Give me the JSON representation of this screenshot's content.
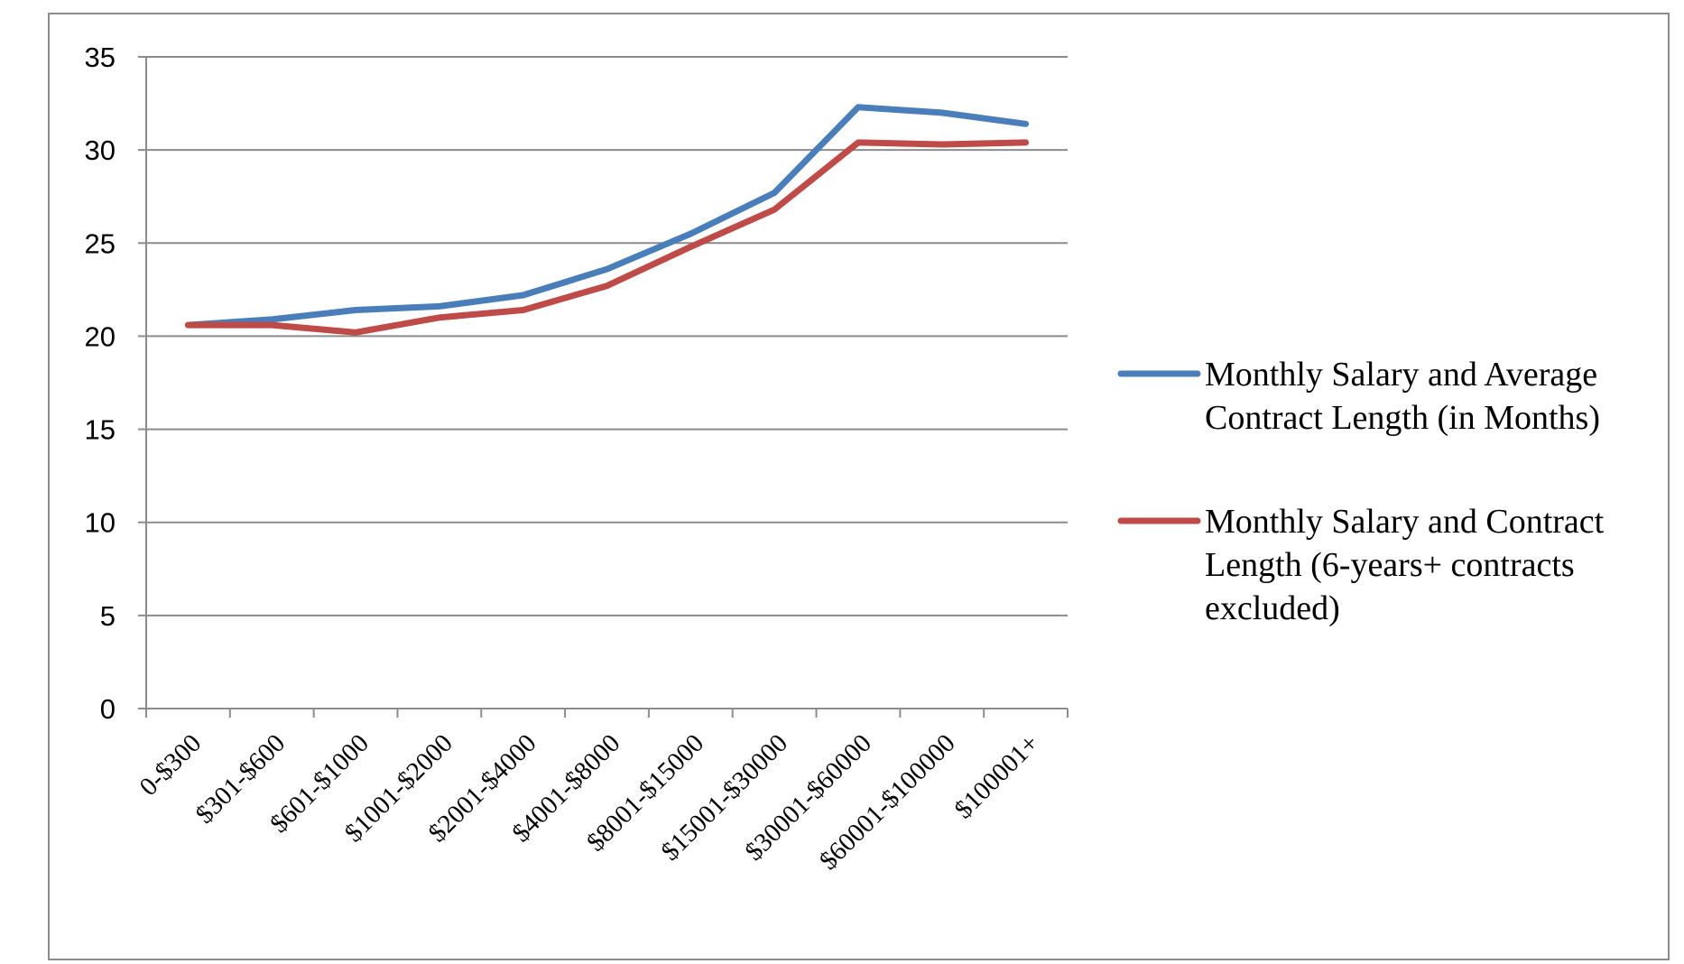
{
  "chart_data": {
    "type": "line",
    "categories": [
      "0-$300",
      "$301-$600",
      "$601-$1000",
      "$1001-$2000",
      "$2001-$4000",
      "$4001-$8000",
      "$8001-$15000",
      "$15001-$30000",
      "$30001-$60000",
      "$60001-$100000",
      "$100001+"
    ],
    "series": [
      {
        "name": "Monthly Salary and Average Contract Length (in Months)",
        "color": "#4a7ebb",
        "values": [
          20.6,
          20.9,
          21.4,
          21.6,
          22.2,
          23.6,
          25.5,
          27.7,
          32.3,
          32.0,
          31.4
        ],
        "legend_lines": [
          "Monthly Salary and Average",
          "Contract Length (in Months)"
        ]
      },
      {
        "name": "Monthly Salary and Contract Length (6-years+ contracts excluded)",
        "color": "#be4b48",
        "values": [
          20.6,
          20.6,
          20.2,
          21.0,
          21.4,
          22.7,
          24.8,
          26.8,
          30.4,
          30.3,
          30.4
        ],
        "legend_lines": [
          "Monthly Salary and Contract",
          "Length (6-years+ contracts",
          "excluded)"
        ]
      }
    ],
    "ylim": [
      0,
      35
    ],
    "yticks": [
      0,
      5,
      10,
      15,
      20,
      25,
      30,
      35
    ],
    "grid": true,
    "legend_position": "right",
    "title": "",
    "xlabel": "",
    "ylabel": ""
  }
}
